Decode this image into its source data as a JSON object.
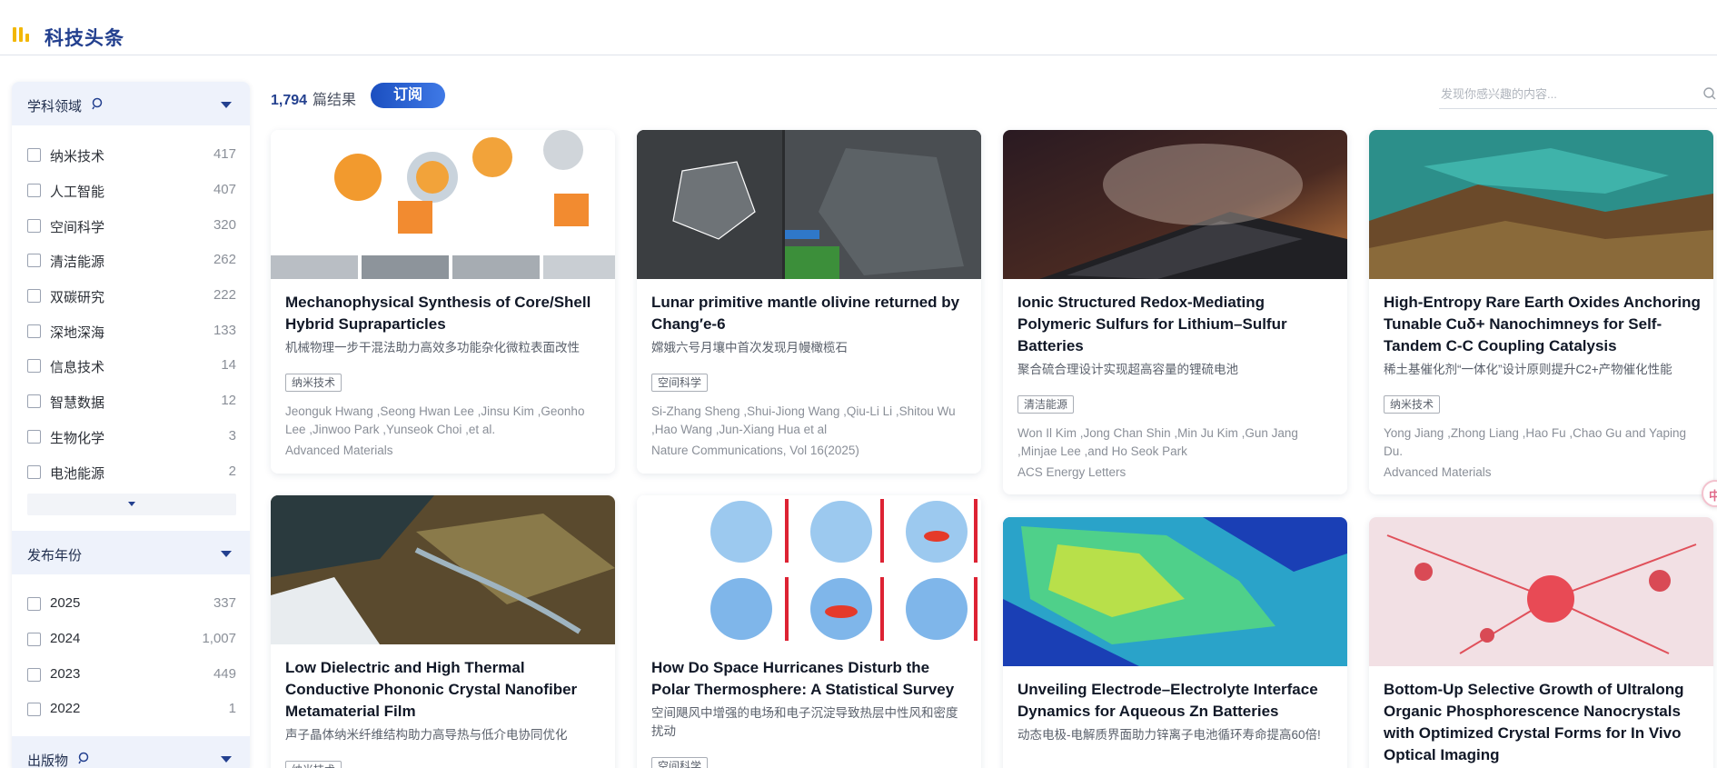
{
  "header": {
    "title": "科技头条",
    "logo_icon": "bar-logo-icon",
    "accent": "#f2b705",
    "title_color": "#23408f"
  },
  "sidebar": {
    "field_facet": {
      "label": "学科领域",
      "items": [
        {
          "name": "纳米技术",
          "count": "417"
        },
        {
          "name": "人工智能",
          "count": "407"
        },
        {
          "name": "空间科学",
          "count": "320"
        },
        {
          "name": "清洁能源",
          "count": "262"
        },
        {
          "name": "双碳研究",
          "count": "222"
        },
        {
          "name": "深地深海",
          "count": "133"
        },
        {
          "name": "信息技术",
          "count": "14"
        },
        {
          "name": "智慧数据",
          "count": "12"
        },
        {
          "name": "生物化学",
          "count": "3"
        },
        {
          "name": "电池能源",
          "count": "2"
        }
      ]
    },
    "year_facet": {
      "label": "发布年份",
      "items": [
        {
          "name": "2025",
          "count": "337"
        },
        {
          "name": "2024",
          "count": "1,007"
        },
        {
          "name": "2023",
          "count": "449"
        },
        {
          "name": "2022",
          "count": "1"
        }
      ]
    },
    "publication_facet": {
      "label": "出版物"
    }
  },
  "results": {
    "count": "1,794",
    "unit": "篇结果",
    "subscribe_label": "订阅"
  },
  "search": {
    "placeholder": "发现你感兴趣的内容..."
  },
  "cards": [
    {
      "title": "Mechanophysical Synthesis of Core/Shell Hybrid Supraparticles",
      "zh": "机械物理一步干混法助力高效多功能杂化微粒表面改性",
      "tag": "纳米技术",
      "authors": "Jeonguk Hwang ,Seong Hwan Lee ,Jinsu Kim ,Geonho Lee ,Jinwoo Park ,Yunseok Choi ,et al.",
      "journal": "Advanced Materials"
    },
    {
      "title": "Lunar primitive mantle olivine returned by Chang′e-6",
      "zh": "嫦娥六号月壤中首次发现月幔橄榄石",
      "tag": "空间科学",
      "authors": "Si-Zhang Sheng ,Shui-Jiong Wang ,Qiu-Li Li ,Shitou Wu ,Hao Wang ,Jun-Xiang Hua et al",
      "journal": "Nature Communications, Vol 16(2025)"
    },
    {
      "title": "Ionic Structured Redox-Mediating Polymeric Sulfurs for Lithium–Sulfur Batteries",
      "zh": "聚合硫合理设计实现超高容量的锂硫电池",
      "tag": "清洁能源",
      "authors": "Won Il Kim ,Jong Chan Shin ,Min Ju Kim ,Gun Jang ,Minjae Lee ,and Ho Seok Park",
      "journal": "ACS Energy Letters"
    },
    {
      "title": "High-Entropy Rare Earth Oxides Anchoring Tunable Cuδ+ Nanochimneys for Self-Tandem C-C Coupling Catalysis",
      "zh": "稀土基催化剂“一体化”设计原则提升C2+产物催化性能",
      "tag": "纳米技术",
      "authors": "Yong Jiang ,Zhong Liang ,Hao Fu ,Chao Gu and Yaping Du.",
      "journal": "Advanced Materials"
    },
    {
      "title": "Low Dielectric and High Thermal Conductive Phononic Crystal Nanofiber Metamaterial Film",
      "zh": "声子晶体纳米纤维结构助力高导热与低介电协同优化",
      "tag": "纳米技术"
    },
    {
      "title": "How Do Space Hurricanes Disturb the Polar Thermosphere: A Statistical Survey",
      "zh": "空间飓风中增强的电场和电子沉淀导致热层中性风和密度扰动",
      "tag": "空间科学"
    },
    {
      "title": "Unveiling Electrode–Electrolyte Interface Dynamics for Aqueous Zn Batteries",
      "zh": "动态电极-电解质界面助力锌离子电池循环寿命提高60倍!"
    },
    {
      "title": "Bottom-Up Selective Growth of Ultralong Organic Phosphorescence Nanocrystals with Optimized Crystal Forms for In Vivo Optical Imaging"
    }
  ],
  "float_tab": {
    "label": "中"
  }
}
